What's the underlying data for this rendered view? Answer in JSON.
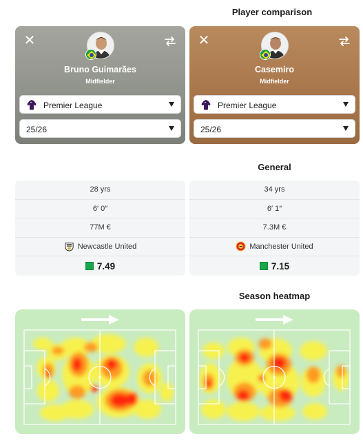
{
  "comparison": {
    "title": "Player comparison"
  },
  "players": [
    {
      "name": "Bruno Guimarães",
      "position": "Midfielder",
      "league": "Premier League",
      "season": "25/26",
      "age": "28 yrs",
      "height": "6′ 0″",
      "value": "77M €",
      "club": "Newcastle United",
      "rating": "7.49"
    },
    {
      "name": "Casemiro",
      "position": "Midfielder",
      "league": "Premier League",
      "season": "25/26",
      "age": "34 yrs",
      "height": "6′ 1″",
      "value": "7.3M €",
      "club": "Manchester United",
      "rating": "7.15"
    }
  ],
  "general": {
    "title": "General"
  },
  "heatmap": {
    "title": "Season heatmap"
  },
  "colors": {
    "left_card": "#9a9c95",
    "right_card": "#a8754a",
    "rating_green": "#1aa64a",
    "pitch": "#c9ebc0"
  },
  "icons": [
    "close-icon",
    "swap-icon",
    "premier-league-icon",
    "chevron-down-icon",
    "brazil-flag-icon",
    "newcastle-crest-icon",
    "manchester-united-crest-icon",
    "direction-arrow-icon"
  ]
}
